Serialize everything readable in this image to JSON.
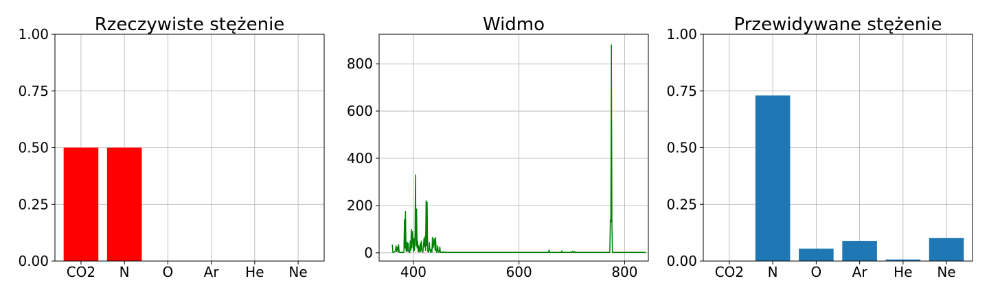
{
  "chart_data": [
    {
      "type": "bar",
      "title": "Rzeczywiste stężenie",
      "categories": [
        "CO2",
        "N",
        "O",
        "Ar",
        "He",
        "Ne"
      ],
      "values": [
        0.5,
        0.5,
        0.0,
        0.0,
        0.0,
        0.0
      ],
      "ylim": [
        0,
        1
      ],
      "yticks": [
        0.0,
        0.25,
        0.5,
        0.75,
        1.0
      ],
      "ytick_labels": [
        "0.00",
        "0.25",
        "0.50",
        "0.75",
        "1.00"
      ],
      "color": "#ff0000",
      "grid": true
    },
    {
      "type": "line",
      "title": "Widmo",
      "xlim": [
        335,
        845
      ],
      "ylim": [
        -35,
        925
      ],
      "xticks": [
        400,
        600,
        800
      ],
      "yticks": [
        0,
        200,
        400,
        600,
        800
      ],
      "color": "#008000",
      "grid": true,
      "x": [
        360,
        361,
        363,
        366,
        367,
        368,
        369,
        370,
        371,
        372,
        373,
        374,
        375,
        377,
        378,
        381,
        382,
        383,
        384,
        385,
        386,
        387,
        388,
        389,
        390,
        391,
        392,
        393,
        394,
        395,
        396,
        397,
        398,
        399,
        400,
        401,
        402,
        403,
        404,
        405,
        406,
        407,
        408,
        409,
        410,
        411,
        412,
        413,
        414,
        415,
        416,
        418,
        420,
        421,
        422,
        423,
        424,
        425,
        426,
        427,
        428,
        429,
        430,
        431,
        432,
        433,
        434,
        435,
        436,
        437,
        438,
        439,
        440,
        441,
        442,
        443,
        444,
        445,
        446,
        447,
        448,
        449,
        450,
        451,
        452,
        453,
        454,
        455,
        456,
        457,
        458,
        459,
        460,
        462,
        464,
        465,
        466,
        467,
        468,
        470,
        500,
        514,
        515,
        516,
        600,
        656,
        657,
        658,
        680,
        681,
        682,
        700,
        701,
        702,
        704,
        705,
        706,
        770,
        772,
        773,
        774,
        775,
        776,
        777,
        778,
        779,
        780,
        800,
        840
      ],
      "y": [
        35,
        2,
        2,
        8,
        30,
        5,
        20,
        25,
        4,
        35,
        3,
        2,
        2,
        2,
        2,
        2,
        5,
        140,
        20,
        175,
        10,
        5,
        45,
        8,
        40,
        5,
        2,
        2,
        50,
        10,
        100,
        20,
        90,
        60,
        5,
        60,
        10,
        80,
        330,
        30,
        185,
        20,
        50,
        5,
        30,
        2,
        15,
        40,
        5,
        50,
        15,
        2,
        60,
        25,
        70,
        10,
        220,
        30,
        215,
        10,
        2,
        5,
        45,
        20,
        3,
        10,
        15,
        2,
        65,
        20,
        30,
        60,
        50,
        10,
        65,
        15,
        2,
        10,
        30,
        5,
        2,
        5,
        25,
        2,
        2,
        2,
        2,
        2,
        2,
        5,
        2,
        2,
        3,
        2,
        2,
        2,
        2,
        2,
        2,
        2,
        2,
        2,
        2,
        2,
        2,
        2,
        12,
        2,
        2,
        8,
        2,
        2,
        7,
        2,
        2,
        6,
        2,
        2,
        2,
        140,
        130,
        880,
        120,
        2,
        2,
        2,
        2,
        2,
        2
      ]
    },
    {
      "type": "bar",
      "title": "Przewidywane stężenie",
      "categories": [
        "CO2",
        "N",
        "O",
        "Ar",
        "He",
        "Ne"
      ],
      "values": [
        0.0,
        0.73,
        0.055,
        0.088,
        0.007,
        0.102
      ],
      "ylim": [
        0,
        1
      ],
      "yticks": [
        0.0,
        0.25,
        0.5,
        0.75,
        1.0
      ],
      "ytick_labels": [
        "0.00",
        "0.25",
        "0.50",
        "0.75",
        "1.00"
      ],
      "color": "#1f77b4",
      "grid": true
    }
  ]
}
